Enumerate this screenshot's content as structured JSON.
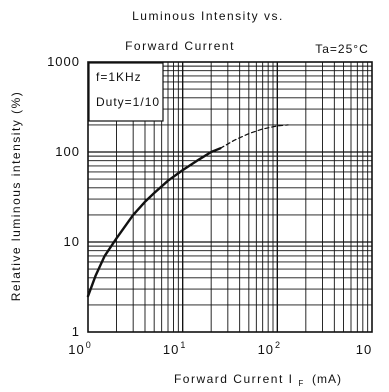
{
  "chart_data": {
    "type": "line",
    "title_line1": "Luminous Intensity vs.",
    "title_line2": "Forward Current",
    "xscale": "log",
    "yscale": "log",
    "xlim": [
      1,
      1000
    ],
    "ylim": [
      1,
      1000
    ],
    "x_ticks": [
      {
        "base": "10",
        "exp": "0"
      },
      {
        "base": "10",
        "exp": "1"
      },
      {
        "base": "10",
        "exp": "2"
      },
      {
        "base": "10",
        "exp": ""
      }
    ],
    "y_ticks": [
      "1",
      "10",
      "100",
      "1000"
    ],
    "xlabel_main": "Forward Current  I",
    "xlabel_sub": "F",
    "xlabel_unit": "(mA)",
    "ylabel": "Relative luminous intensity (%)",
    "grid": true,
    "annotations": {
      "ta": "Ta=25°C",
      "freq": "f=1KHz",
      "duty": "Duty=1/10"
    },
    "series": [
      {
        "style": "solid",
        "x": [
          1,
          1.2,
          1.5,
          2,
          3,
          4,
          5,
          7,
          10,
          15,
          20,
          25
        ],
        "y": [
          2.5,
          4.2,
          7,
          11,
          20,
          28,
          35,
          48,
          63,
          83,
          100,
          110
        ]
      },
      {
        "style": "dashed",
        "x": [
          25,
          35,
          50,
          70,
          100,
          130
        ],
        "y": [
          110,
          135,
          160,
          180,
          195,
          200
        ]
      }
    ]
  }
}
